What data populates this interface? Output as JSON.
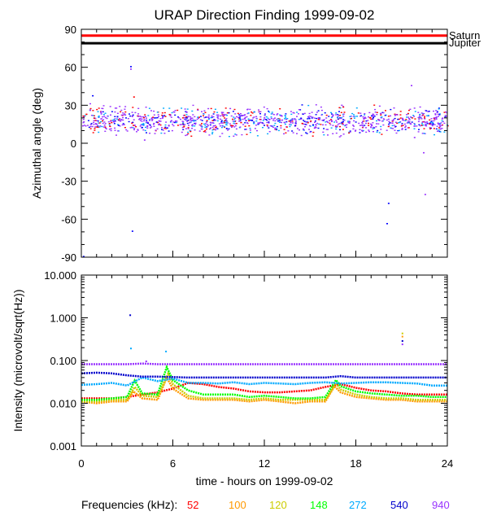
{
  "title": "URAP Direction Finding  1999-09-02",
  "xlabel": "time - hours on 1999-09-02",
  "frequencies_label": "Frequencies (kHz):",
  "chart_data": [
    {
      "type": "scatter",
      "ylabel": "Azimuthal angle (deg)",
      "xlim": [
        0,
        24
      ],
      "ylim": [
        -90,
        90
      ],
      "x_ticks": [
        0,
        6,
        12,
        18,
        24
      ],
      "y_ticks": [
        90,
        60,
        30,
        0,
        -30,
        -60,
        -90
      ],
      "reference_lines": [
        {
          "name": "Saturn",
          "value": 85,
          "color": "#ff0000"
        },
        {
          "name": "Jupiter",
          "value": 79,
          "color": "#000000"
        }
      ],
      "band": {
        "center": 18,
        "spread": 7
      },
      "outliers": [
        {
          "x": 3.2,
          "y": 61,
          "color": "#0000ff"
        },
        {
          "x": 3.2,
          "y": 59,
          "color": "#9933ff"
        },
        {
          "x": 3.3,
          "y": -69,
          "color": "#0000ff"
        },
        {
          "x": 0.1,
          "y": -89,
          "color": "#0000ff"
        },
        {
          "x": 0.7,
          "y": 38,
          "color": "#0000ff"
        },
        {
          "x": 3.4,
          "y": 37,
          "color": "#ff0000"
        },
        {
          "x": 21.6,
          "y": 46,
          "color": "#9933ff"
        },
        {
          "x": 20.1,
          "y": -47,
          "color": "#0000ff"
        },
        {
          "x": 20.0,
          "y": -63,
          "color": "#0000ff"
        },
        {
          "x": 22.5,
          "y": -40,
          "color": "#9933ff"
        },
        {
          "x": 22.4,
          "y": -7,
          "color": "#9933ff"
        },
        {
          "x": 21.8,
          "y": 5,
          "color": "#9933ff"
        },
        {
          "x": 23.3,
          "y": 10,
          "color": "#9933ff"
        },
        {
          "x": 4.1,
          "y": 3,
          "color": "#9933ff"
        }
      ]
    },
    {
      "type": "line",
      "ylabel": "Intensity (microvolt/sqrt(Hz))",
      "xlim": [
        0,
        24
      ],
      "ylim": [
        0.001,
        10
      ],
      "yscale": "log",
      "x_ticks": [
        0,
        6,
        12,
        18,
        24
      ],
      "y_ticks": [
        10,
        1,
        0.1,
        0.01,
        0.001
      ],
      "y_tick_labels": [
        "10.000",
        "1.000",
        "0.100",
        "0.010",
        "0.001"
      ],
      "series": [
        {
          "name": "52",
          "color": "#ff0000",
          "x": [
            0,
            1,
            2,
            3,
            4,
            5,
            6,
            7,
            8,
            9,
            10,
            11,
            12,
            13,
            14,
            15,
            16,
            17,
            18,
            19,
            20,
            21,
            22,
            23,
            24
          ],
          "y": [
            0.013,
            0.013,
            0.013,
            0.014,
            0.016,
            0.018,
            0.022,
            0.03,
            0.028,
            0.024,
            0.022,
            0.019,
            0.018,
            0.018,
            0.019,
            0.02,
            0.024,
            0.028,
            0.023,
            0.02,
            0.019,
            0.017,
            0.016,
            0.016,
            0.016
          ]
        },
        {
          "name": "100",
          "color": "#ff9900",
          "x": [
            0,
            1,
            2,
            3,
            3.4,
            4,
            5,
            5.6,
            6,
            7,
            8,
            9,
            10,
            11,
            12,
            13,
            14,
            15,
            16,
            16.6,
            17,
            18,
            19,
            20,
            21,
            22,
            23,
            24
          ],
          "y": [
            0.011,
            0.01,
            0.011,
            0.011,
            0.019,
            0.013,
            0.012,
            0.04,
            0.022,
            0.013,
            0.012,
            0.012,
            0.012,
            0.011,
            0.012,
            0.011,
            0.01,
            0.011,
            0.011,
            0.025,
            0.018,
            0.014,
            0.013,
            0.012,
            0.012,
            0.011,
            0.011,
            0.011
          ]
        },
        {
          "name": "120",
          "color": "#cccc00",
          "x": [
            0,
            1,
            2,
            3,
            3.5,
            4,
            5,
            5.7,
            6,
            7,
            8,
            9,
            10,
            11,
            12,
            13,
            14,
            15,
            16,
            16.7,
            17,
            18,
            19,
            20,
            21,
            22,
            23,
            24
          ],
          "y": [
            0.011,
            0.011,
            0.012,
            0.012,
            0.024,
            0.015,
            0.014,
            0.05,
            0.028,
            0.015,
            0.013,
            0.013,
            0.013,
            0.012,
            0.013,
            0.012,
            0.012,
            0.012,
            0.012,
            0.03,
            0.021,
            0.016,
            0.014,
            0.013,
            0.013,
            0.012,
            0.012,
            0.012
          ]
        },
        {
          "name": "148",
          "color": "#00ff00",
          "x": [
            0,
            1,
            2,
            3,
            3.5,
            4,
            5,
            5.6,
            6,
            7,
            8,
            9,
            10,
            11,
            12,
            13,
            14,
            15,
            16,
            16.7,
            17,
            18,
            19,
            20,
            21,
            22,
            23,
            24
          ],
          "y": [
            0.012,
            0.012,
            0.013,
            0.014,
            0.034,
            0.017,
            0.016,
            0.07,
            0.035,
            0.02,
            0.016,
            0.016,
            0.016,
            0.014,
            0.015,
            0.014,
            0.013,
            0.013,
            0.014,
            0.035,
            0.025,
            0.019,
            0.017,
            0.016,
            0.015,
            0.015,
            0.014,
            0.014
          ]
        },
        {
          "name": "272",
          "color": "#00aaff",
          "x": [
            0,
            1,
            2,
            3,
            4,
            5,
            6,
            7,
            8,
            9,
            10,
            11,
            12,
            13,
            14,
            15,
            16,
            17,
            18,
            19,
            20,
            21,
            22,
            23,
            24
          ],
          "y": [
            0.027,
            0.028,
            0.03,
            0.026,
            0.04,
            0.033,
            0.038,
            0.03,
            0.03,
            0.029,
            0.031,
            0.028,
            0.03,
            0.029,
            0.028,
            0.03,
            0.031,
            0.029,
            0.03,
            0.031,
            0.031,
            0.03,
            0.029,
            0.026,
            0.026
          ]
        },
        {
          "name": "540",
          "color": "#0000cc",
          "x": [
            0,
            1,
            2,
            3,
            4,
            5,
            6,
            7,
            8,
            9,
            10,
            11,
            12,
            13,
            14,
            15,
            16,
            17,
            18,
            19,
            20,
            21,
            22,
            23,
            24
          ],
          "y": [
            0.05,
            0.052,
            0.05,
            0.045,
            0.042,
            0.042,
            0.041,
            0.04,
            0.04,
            0.04,
            0.04,
            0.04,
            0.04,
            0.04,
            0.04,
            0.04,
            0.04,
            0.043,
            0.04,
            0.04,
            0.04,
            0.04,
            0.04,
            0.04,
            0.04
          ]
        },
        {
          "name": "940",
          "color": "#9933ff",
          "x": [
            0,
            1,
            2,
            3,
            4,
            5,
            6,
            7,
            8,
            9,
            10,
            11,
            12,
            13,
            14,
            15,
            16,
            17,
            18,
            19,
            20,
            21,
            22,
            23,
            24
          ],
          "y": [
            0.082,
            0.082,
            0.082,
            0.082,
            0.085,
            0.082,
            0.082,
            0.082,
            0.082,
            0.082,
            0.082,
            0.082,
            0.082,
            0.082,
            0.082,
            0.082,
            0.082,
            0.082,
            0.082,
            0.082,
            0.082,
            0.082,
            0.082,
            0.082,
            0.082
          ]
        }
      ],
      "spikes": [
        {
          "x": 3.15,
          "y": 1.2,
          "color": "#0000cc"
        },
        {
          "x": 3.2,
          "y": 0.2,
          "color": "#00aaff"
        },
        {
          "x": 21.0,
          "y": 0.45,
          "color": "#cccc00"
        },
        {
          "x": 21.0,
          "y": 0.38,
          "color": "#ff9900"
        },
        {
          "x": 21.0,
          "y": 0.3,
          "color": "#0000cc"
        },
        {
          "x": 21.0,
          "y": 0.25,
          "color": "#9933ff"
        },
        {
          "x": 5.5,
          "y": 0.17,
          "color": "#00aaff"
        },
        {
          "x": 4.2,
          "y": 0.1,
          "color": "#9933ff"
        }
      ]
    }
  ]
}
